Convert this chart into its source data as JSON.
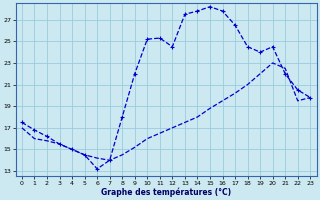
{
  "xlabel": "Graphe des températures (°C)",
  "background_color": "#cce8f0",
  "grid_color": "#99ccdd",
  "line_color": "#0000cc",
  "ylim": [
    12.5,
    28.5
  ],
  "xlim": [
    -0.5,
    23.5
  ],
  "yticks": [
    13,
    15,
    17,
    19,
    21,
    23,
    25,
    27
  ],
  "xticks": [
    0,
    1,
    2,
    3,
    4,
    5,
    6,
    7,
    8,
    9,
    10,
    11,
    12,
    13,
    14,
    15,
    16,
    17,
    18,
    19,
    20,
    21,
    22,
    23
  ],
  "line1_x": [
    0,
    1,
    2,
    3,
    4,
    5,
    6,
    7,
    8,
    9,
    10,
    11,
    12,
    13,
    14,
    15,
    16,
    17,
    18,
    19,
    20,
    21,
    22,
    23
  ],
  "line1_y": [
    17.5,
    16.8,
    16.2,
    15.5,
    15.0,
    14.5,
    13.2,
    14.0,
    18.0,
    22.0,
    25.2,
    25.3,
    24.5,
    27.5,
    27.8,
    28.2,
    27.8,
    26.5,
    24.5,
    24.0,
    24.5,
    22.0,
    20.5,
    19.8
  ],
  "line2_x": [
    0,
    1,
    2,
    3,
    4,
    5,
    6,
    7,
    8,
    9,
    10,
    11,
    12,
    13,
    14,
    15,
    16,
    17,
    18,
    19,
    20,
    21,
    22,
    23
  ],
  "line2_y": [
    17.0,
    16.0,
    15.8,
    15.5,
    15.0,
    14.5,
    14.2,
    14.0,
    14.5,
    15.2,
    16.0,
    16.5,
    17.0,
    17.5,
    18.0,
    18.8,
    19.5,
    20.2,
    21.0,
    22.0,
    23.0,
    22.5,
    19.5,
    19.8
  ]
}
